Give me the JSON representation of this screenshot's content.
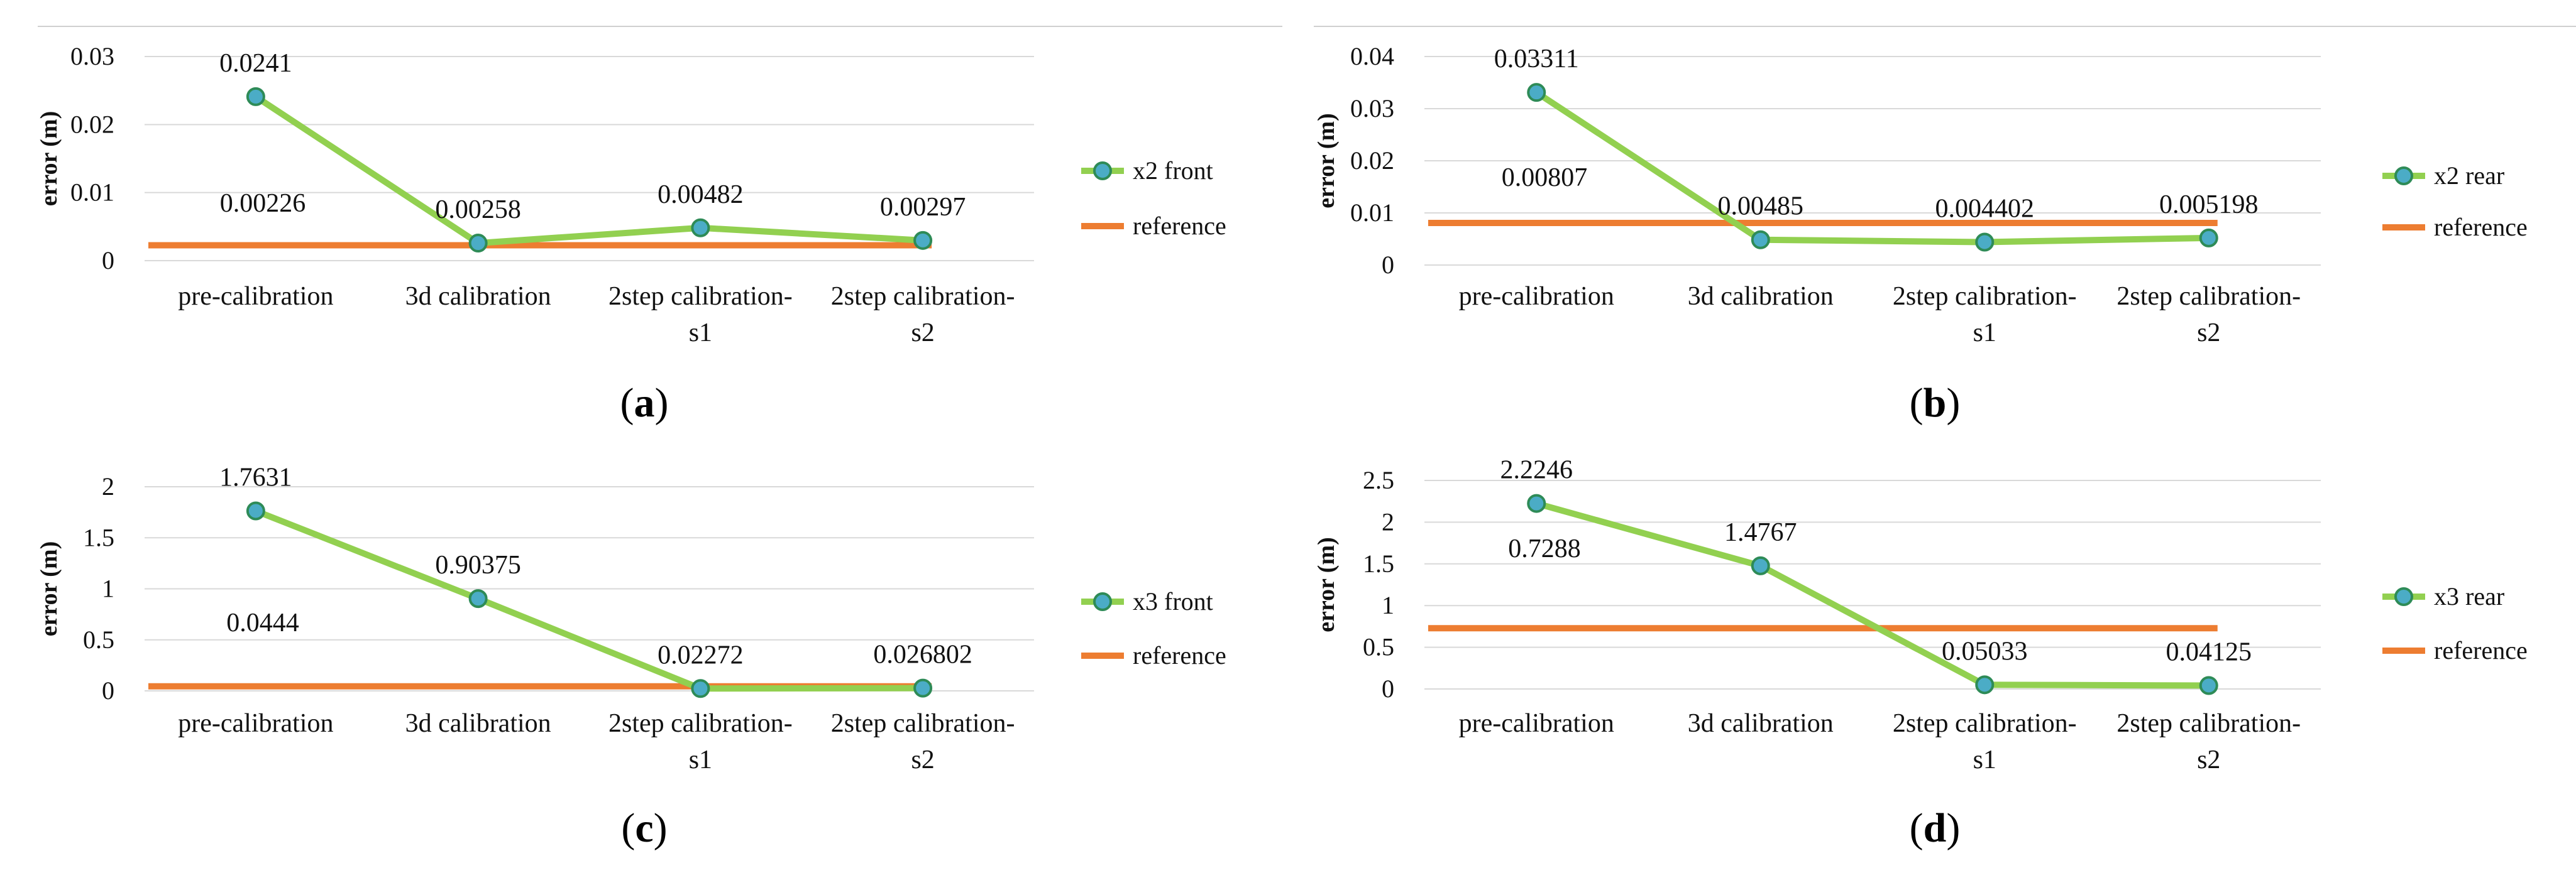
{
  "colors": {
    "series": "#92d050",
    "marker_fill": "#4bacc6",
    "marker_stroke": "#2e8b57",
    "reference": "#ed7d31",
    "grid": "#d9d9d9"
  },
  "chart_data": [
    {
      "type": "line",
      "caption_letter": "a",
      "ylabel": "error (m)",
      "categories": [
        "pre-calibration",
        "3d calibration",
        "2step calibration-\ns1",
        "2step calibration-\ns2"
      ],
      "ylim": [
        0,
        0.03
      ],
      "yticks": [
        0,
        0.01,
        0.02,
        0.03
      ],
      "ytick_labels": [
        "0",
        "0.01",
        "0.02",
        "0.03"
      ],
      "series": [
        {
          "name": "x2 front",
          "values": [
            0.0241,
            0.00258,
            0.00482,
            0.00297
          ],
          "labels": [
            "0.0241",
            "0.00258",
            "0.00482",
            "0.00297"
          ]
        },
        {
          "name": "reference",
          "values": [
            0.00226,
            0.00226,
            0.00226,
            0.00226
          ],
          "label": "0.00226"
        }
      ]
    },
    {
      "type": "line",
      "caption_letter": "b",
      "ylabel": "error (m)",
      "categories": [
        "pre-calibration",
        "3d calibration",
        "2step calibration-\ns1",
        "2step calibration-\ns2"
      ],
      "ylim": [
        0,
        0.04
      ],
      "yticks": [
        0,
        0.01,
        0.02,
        0.03,
        0.04
      ],
      "ytick_labels": [
        "0",
        "0.01",
        "0.02",
        "0.03",
        "0.04"
      ],
      "series": [
        {
          "name": "x2 rear",
          "values": [
            0.03311,
            0.00485,
            0.004402,
            0.005198
          ],
          "labels": [
            "0.03311",
            "0.00485",
            "0.004402",
            "0.005198"
          ]
        },
        {
          "name": "reference",
          "values": [
            0.00807,
            0.00807,
            0.00807,
            0.00807
          ],
          "label": "0.00807"
        }
      ]
    },
    {
      "type": "line",
      "caption_letter": "c",
      "ylabel": "error (m)",
      "categories": [
        "pre-calibration",
        "3d calibration",
        "2step calibration-\ns1",
        "2step calibration-\ns2"
      ],
      "ylim": [
        0,
        2
      ],
      "yticks": [
        0,
        0.5,
        1,
        1.5,
        2
      ],
      "ytick_labels": [
        "0",
        "0.5",
        "1",
        "1.5",
        "2"
      ],
      "series": [
        {
          "name": "x3 front",
          "values": [
            1.7631,
            0.90375,
            0.02272,
            0.026802
          ],
          "labels": [
            "1.7631",
            "0.90375",
            "0.02272",
            "0.026802"
          ]
        },
        {
          "name": "reference",
          "values": [
            0.0444,
            0.0444,
            0.0444,
            0.0444
          ],
          "label": "0.0444"
        }
      ]
    },
    {
      "type": "line",
      "caption_letter": "d",
      "ylabel": "error (m)",
      "categories": [
        "pre-calibration",
        "3d calibration",
        "2step calibration-\ns1",
        "2step calibration-\ns2"
      ],
      "ylim": [
        0,
        2.5
      ],
      "yticks": [
        0,
        0.5,
        1,
        1.5,
        2,
        2.5
      ],
      "ytick_labels": [
        "0",
        "0.5",
        "1",
        "1.5",
        "2",
        "2.5"
      ],
      "series": [
        {
          "name": "x3 rear",
          "values": [
            2.2246,
            1.4767,
            0.05033,
            0.04125
          ],
          "labels": [
            "2.2246",
            "1.4767",
            "0.05033",
            "0.04125"
          ]
        },
        {
          "name": "reference",
          "values": [
            0.7288,
            0.7288,
            0.7288,
            0.7288
          ],
          "label": "0.7288"
        }
      ]
    }
  ]
}
